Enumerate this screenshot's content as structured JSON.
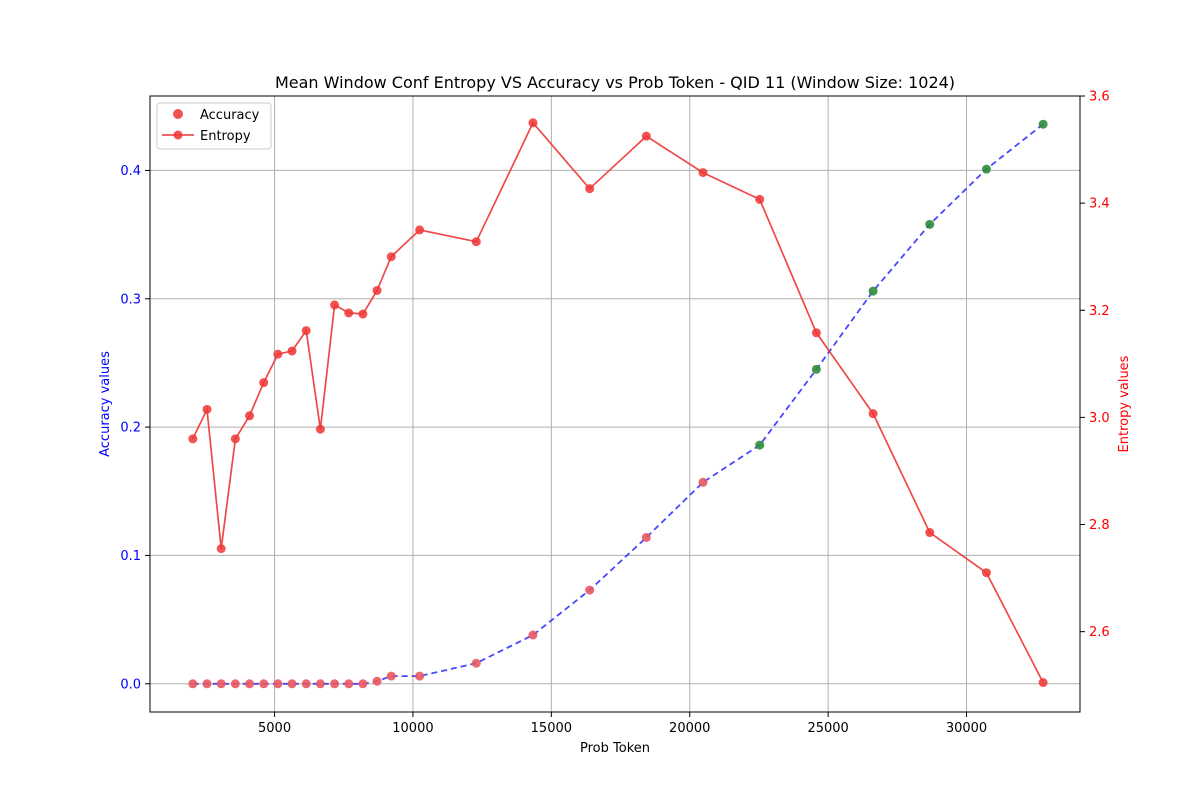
{
  "chart_data": {
    "type": "line",
    "title": "Mean Window Conf Entropy VS Accuracy vs Prob Token - QID 11 (Window Size: 1024)",
    "xlabel": "Prob Token",
    "ylabel_left": "Accuracy values",
    "ylabel_right": "Entropy values",
    "xlim": [
      500,
      34100
    ],
    "ylim_left": [
      -0.022,
      0.458
    ],
    "ylim_right": [
      2.45,
      3.6
    ],
    "x_ticks": [
      5000,
      10000,
      15000,
      20000,
      25000,
      30000
    ],
    "y_left_ticks": [
      0.0,
      0.1,
      0.2,
      0.3,
      0.4
    ],
    "y_right_ticks": [
      2.6,
      2.8,
      3.0,
      3.2,
      3.4,
      3.6
    ],
    "grid": true,
    "legend_position": "upper-left",
    "colors": {
      "accuracy_line": "#3333ff",
      "accuracy_point_low": "#e8585f",
      "accuracy_point_high": "#2e8b3a",
      "entropy": "#ee3535",
      "left_axis_text": "#0000ff",
      "right_axis_text": "#ff0000"
    },
    "accuracy_threshold": 0.18,
    "series": [
      {
        "name": "Accuracy",
        "axis": "left",
        "x": [
          2048,
          2560,
          3072,
          3584,
          4096,
          4608,
          5120,
          5632,
          6144,
          6656,
          7168,
          7680,
          8192,
          8704,
          9216,
          10240,
          12288,
          14336,
          16384,
          18432,
          20480,
          22528,
          24576,
          26624,
          28672,
          30720,
          32768
        ],
        "y": [
          0.0,
          0.0,
          0.0,
          0.0,
          0.0,
          0.0,
          0.0,
          0.0,
          0.0,
          0.0,
          0.0,
          0.0,
          0.0,
          0.002,
          0.006,
          0.006,
          0.016,
          0.038,
          0.073,
          0.114,
          0.157,
          0.186,
          0.245,
          0.306,
          0.358,
          0.401,
          0.436
        ]
      },
      {
        "name": "Entropy",
        "axis": "right",
        "x": [
          2048,
          2560,
          3072,
          3584,
          4096,
          4608,
          5120,
          5632,
          6144,
          6656,
          7168,
          7680,
          8192,
          8704,
          9216,
          10240,
          12288,
          14336,
          16384,
          18432,
          20480,
          22528,
          24576,
          26624,
          28672,
          30720,
          32768
        ],
        "y": [
          2.96,
          3.015,
          2.755,
          2.96,
          3.003,
          3.065,
          3.118,
          3.124,
          3.162,
          2.978,
          3.21,
          3.195,
          3.193,
          3.237,
          3.3,
          3.35,
          3.328,
          3.55,
          3.427,
          3.525,
          3.457,
          3.407,
          3.158,
          3.007,
          2.785,
          2.71,
          2.505
        ]
      }
    ]
  }
}
